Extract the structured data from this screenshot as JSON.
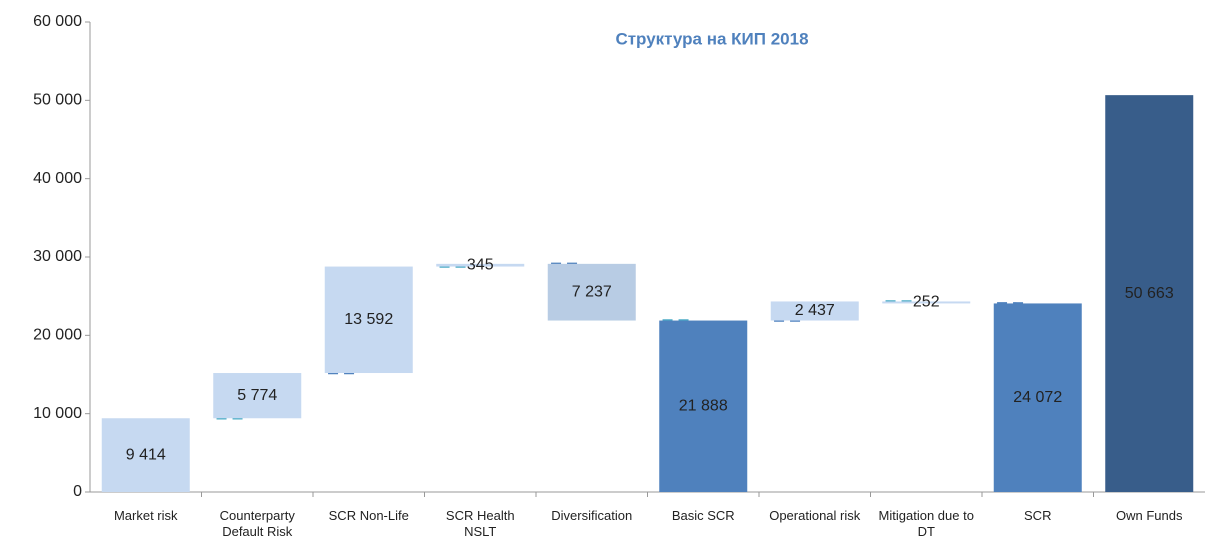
{
  "chart_data": {
    "type": "waterfall",
    "title": "Структура на КИП 2018",
    "categories": [
      "Market risk",
      "Counterparty Default Risk",
      "SCR Non-Life",
      "SCR Health NSLT",
      "Diversification",
      "Basic SCR",
      "Operational risk",
      "Mitigation due to DT",
      "SCR",
      "Own Funds"
    ],
    "measure": [
      "relative",
      "relative",
      "relative",
      "relative",
      "relative",
      "total",
      "relative",
      "relative",
      "total",
      "total"
    ],
    "values": [
      9414,
      5774,
      13592,
      345,
      -7237,
      21888,
      2437,
      -252,
      24072,
      50663
    ],
    "value_labels": [
      "9 414",
      "5 774",
      "13 592",
      "345",
      "7 237",
      "21 888",
      "2 437",
      "252",
      "24 072",
      "50 663"
    ],
    "colors": [
      "#c6d9f1",
      "#c6d9f1",
      "#c6d9f1",
      "#c6d9f1",
      "#b8cce4",
      "#4f81bd",
      "#c6d9f1",
      "#c6d9f1",
      "#4f81bd",
      "#385d8a"
    ],
    "ylim": [
      0,
      60000
    ],
    "yticks": [
      0,
      {
        "value": 10000,
        "label": "10 000"
      },
      {
        "value": 20000,
        "label": "20 000"
      },
      {
        "value": 30000,
        "label": "30 000"
      },
      {
        "value": 40000,
        "label": "40 000"
      },
      {
        "value": 50000,
        "label": "50 000"
      },
      {
        "value": 60000,
        "label": "60 000"
      }
    ]
  }
}
